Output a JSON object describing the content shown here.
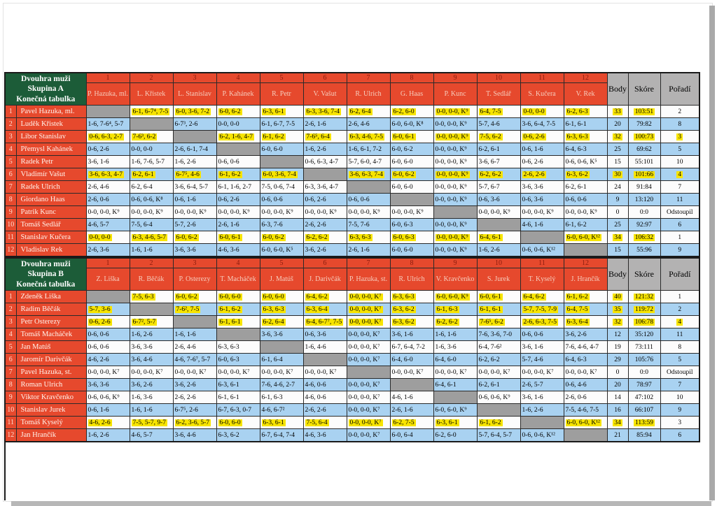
{
  "colors": {
    "header_red": "#e6492d",
    "header_green": "#1c5c38",
    "zebra_blue": "#a9d2f1",
    "self_gray": "#9e9e9e",
    "highlight_yellow": "#f7e400",
    "result_header_gray": "#b3b2b2"
  },
  "tables": [
    {
      "title_lines": [
        "Dvouhra muži",
        "Skupina A",
        "Konečná tabulka"
      ],
      "col_numbers": [
        "1",
        "2",
        "3",
        "4",
        "5",
        "6",
        "7",
        "8",
        "9",
        "10",
        "11",
        "12"
      ],
      "col_players": [
        "P. Hazuka, ml.",
        "L. Křistek",
        "L. Stanislav",
        "P. Kahánek",
        "R. Petr",
        "V. Vašut",
        "R. Ulrich",
        "G. Haas",
        "P. Kunc",
        "T. Sedlář",
        "S. Kučera",
        "V. Rek"
      ],
      "result_headers": [
        "Body",
        "Skóre",
        "Pořadí"
      ],
      "rows": [
        {
          "num": "1",
          "name": "Pavel Hazuka, ml.",
          "highlight": true,
          "hl_poradi": false,
          "cells": [
            "",
            "6-1, 6-7⁴, 7-5",
            "6-0, 3-6, 7-2",
            "6-0, 6-2",
            "6-3, 6-1",
            "6-3, 3-6, 7-4",
            "6-2, 6-4",
            "6-2, 6-0",
            "0-0, 0-0, K⁹",
            "6-4, 7-5",
            "0-0, 0-0",
            "6-2, 6-3"
          ],
          "body": "33",
          "skore": "103:51",
          "poradi": "2"
        },
        {
          "num": "2",
          "name": "Luděk Křistek",
          "highlight": false,
          "hl_poradi": false,
          "cells": [
            "1-6, 7-6⁴, 5-7",
            "",
            "6-7³, 2-6",
            "0-0, 0-0",
            "6-1, 6-7, 7-5",
            "2-6, 1-6",
            "2-6, 4-6",
            "6-0, 6-0, K⁸",
            "0-0, 0-0, K⁹",
            "5-7, 4-6",
            "3-6, 6-4, 7-5",
            "6-1, 6-1"
          ],
          "body": "20",
          "skore": "79:82",
          "poradi": "8"
        },
        {
          "num": "3",
          "name": "Libor Stanislav",
          "highlight": true,
          "hl_poradi": true,
          "cells": [
            "0-6, 6-3, 2-7",
            "7-6³, 6-2",
            "",
            "6-2, 1-6, 4-7",
            "6-1, 6-2",
            "7-6⁵, 6-4",
            "6-3, 4-6, 7-5",
            "6-0, 6-1",
            "0-0, 0-0, K⁹",
            "7-5, 6-2",
            "0-6, 2-6",
            "6-3, 6-3"
          ],
          "body": "32",
          "skore": "100:73",
          "poradi": "3"
        },
        {
          "num": "4",
          "name": "Přemysl Kahánek",
          "highlight": false,
          "hl_poradi": false,
          "cells": [
            "0-6, 2-6",
            "0-0, 0-0",
            "2-6, 6-1, 7-4",
            "",
            "6-0, 6-0",
            "1-6, 2-6",
            "1-6, 6-1, 7-2",
            "6-0, 6-2",
            "0-0, 0-0, K⁹",
            "6-2, 6-1",
            "0-6, 1-6",
            "6-4, 6-3"
          ],
          "body": "25",
          "skore": "69:62",
          "poradi": "5"
        },
        {
          "num": "5",
          "name": "Radek Petr",
          "highlight": false,
          "hl_poradi": false,
          "cells": [
            "3-6, 1-6",
            "1-6, 7-6, 5-7",
            "1-6, 2-6",
            "0-6, 0-6",
            "",
            "0-6, 6-3, 4-7",
            "5-7, 6-0, 4-7",
            "6-0, 6-0",
            "0-0, 0-0, K⁹",
            "3-6, 6-7",
            "0-6, 2-6",
            "0-6, 0-6, K⁵"
          ],
          "body": "15",
          "skore": "55:101",
          "poradi": "10"
        },
        {
          "num": "6",
          "name": "Vladimír Vašut",
          "highlight": true,
          "hl_poradi": true,
          "cells": [
            "3-6, 6-3, 4-7",
            "6-2, 6-1",
            "6-7⁵, 4-6",
            "6-1, 6-2",
            "6-0, 3-6, 7-4",
            "",
            "3-6, 6-3, 7-4",
            "6-0, 6-2",
            "0-0, 0-0, K⁹",
            "6-2, 6-2",
            "2-6, 2-6",
            "6-3, 6-2"
          ],
          "body": "30",
          "skore": "101:66",
          "poradi": "4"
        },
        {
          "num": "7",
          "name": "Radek Ulrich",
          "highlight": false,
          "hl_poradi": false,
          "cells": [
            "2-6, 4-6",
            "6-2, 6-4",
            "3-6, 6-4, 5-7",
            "6-1, 1-6, 2-7",
            "7-5, 0-6, 7-4",
            "6-3, 3-6, 4-7",
            "",
            "6-0, 6-0",
            "0-0, 0-0, K⁹",
            "5-7, 6-7",
            "3-6, 3-6",
            "6-2, 6-1"
          ],
          "body": "24",
          "skore": "91:84",
          "poradi": "7"
        },
        {
          "num": "8",
          "name": "Giordano Haas",
          "highlight": false,
          "hl_poradi": false,
          "cells": [
            "2-6, 0-6",
            "0-6, 0-6, K⁸",
            "0-6, 1-6",
            "0-6, 2-6",
            "0-6, 0-6",
            "0-6, 2-6",
            "0-6, 0-6",
            "",
            "0-0, 0-0, K⁹",
            "0-6, 3-6",
            "0-6, 3-6",
            "0-6, 0-6"
          ],
          "body": "9",
          "skore": "13:120",
          "poradi": "11"
        },
        {
          "num": "9",
          "name": "Patrik Kunc",
          "highlight": false,
          "hl_poradi": false,
          "cells": [
            "0-0, 0-0, K⁹",
            "0-0, 0-0, K⁹",
            "0-0, 0-0, K⁹",
            "0-0, 0-0, K⁹",
            "0-0, 0-0, K⁹",
            "0-0, 0-0, K⁹",
            "0-0, 0-0, K⁹",
            "0-0, 0-0, K⁹",
            "",
            "0-0, 0-0, K⁹",
            "0-0, 0-0, K⁹",
            "0-0, 0-0, K⁹"
          ],
          "body": "0",
          "skore": "0:0",
          "poradi": "Odstoupil"
        },
        {
          "num": "10",
          "name": "Tomáš Sedlář",
          "highlight": false,
          "hl_poradi": false,
          "cells": [
            "4-6, 5-7",
            "7-5, 6-4",
            "5-7, 2-6",
            "2-6, 1-6",
            "6-3, 7-6",
            "2-6, 2-6",
            "7-5, 7-6",
            "6-0, 6-3",
            "0-0, 0-0, K⁹",
            "",
            "4-6, 1-6",
            "6-1, 6-2"
          ],
          "body": "25",
          "skore": "92:97",
          "poradi": "6"
        },
        {
          "num": "11",
          "name": "Stanislav Kučera",
          "highlight": true,
          "hl_poradi": false,
          "cells": [
            "0-0, 0-0",
            "6-3, 4-6, 5-7",
            "6-0, 6-2",
            "6-0, 6-1",
            "6-0, 6-2",
            "6-2, 6-2",
            "6-3, 6-3",
            "6-0, 6-3",
            "0-0, 0-0, K⁹",
            "6-4, 6-1",
            "",
            "6-0, 6-0, K¹²"
          ],
          "body": "34",
          "skore": "106:32",
          "poradi": "1"
        },
        {
          "num": "12",
          "name": "Vladislav Rek",
          "highlight": false,
          "hl_poradi": false,
          "cells": [
            "2-6, 3-6",
            "1-6, 1-6",
            "3-6, 3-6",
            "4-6, 3-6",
            "6-0, 6-0, K⁵",
            "3-6, 2-6",
            "2-6, 1-6",
            "6-0, 6-0",
            "0-0, 0-0, K⁹",
            "1-6, 2-6",
            "0-6, 0-6, K¹²",
            ""
          ],
          "body": "15",
          "skore": "55:96",
          "poradi": "9"
        }
      ]
    },
    {
      "title_lines": [
        "Dvouhra muži",
        "Skupina B",
        "Konečná tabulka"
      ],
      "col_numbers": [
        "1",
        "2",
        "3",
        "4",
        "5",
        "6",
        "7",
        "8",
        "9",
        "10",
        "11",
        "12"
      ],
      "col_players": [
        "Z. Liška",
        "R. Běčák",
        "P. Osterezy",
        "T. Macháček",
        "J. Matúš",
        "J. Darivčák",
        "P. Hazuka, st.",
        "R. Ulrich",
        "V. Kravčenko",
        "S. Jurek",
        "T. Kyselý",
        "J. Hrančík"
      ],
      "result_headers": [
        "Body",
        "Skóre",
        "Pořadí"
      ],
      "rows": [
        {
          "num": "1",
          "name": "Zdeněk Liška",
          "highlight": true,
          "hl_poradi": false,
          "cells": [
            "",
            "7-5, 6-3",
            "6-0, 6-2",
            "6-0, 6-0",
            "6-0, 6-0",
            "6-4, 6-2",
            "0-0, 0-0, K⁷",
            "6-3, 6-3",
            "6-0, 6-0, K⁹",
            "6-0, 6-1",
            "6-4, 6-2",
            "6-1, 6-2"
          ],
          "body": "40",
          "skore": "121:32",
          "poradi": "1"
        },
        {
          "num": "2",
          "name": "Radim Běčák",
          "highlight": true,
          "hl_poradi": false,
          "cells": [
            "5-7, 3-6",
            "",
            "7-6², 7-5",
            "6-1, 6-2",
            "6-3, 6-3",
            "6-3, 6-4",
            "0-0, 0-0, K⁷",
            "6-3, 6-2",
            "6-1, 6-3",
            "6-1, 6-1",
            "5-7, 7-5, 7-9",
            "6-4, 7-5"
          ],
          "body": "35",
          "skore": "119:72",
          "poradi": "2"
        },
        {
          "num": "3",
          "name": "Petr Osterezy",
          "highlight": true,
          "hl_poradi": true,
          "cells": [
            "0-6, 2-6",
            "6-7², 5-7",
            "",
            "6-1, 6-1",
            "6-2, 6-4",
            "6-4, 6-7⁷, 7-5",
            "0-0, 0-0, K⁷",
            "6-3, 6-2",
            "6-2, 6-2",
            "7-6⁵, 6-2",
            "2-6, 6-3, 7-5",
            "6-3, 6-4"
          ],
          "body": "32",
          "skore": "106:78",
          "poradi": "4"
        },
        {
          "num": "4",
          "name": "Tomáš Macháček",
          "highlight": false,
          "hl_poradi": false,
          "cells": [
            "0-6, 0-6",
            "1-6, 2-6",
            "1-6, 1-6",
            "",
            "3-6, 3-6",
            "0-6, 3-6",
            "0-0, 0-0, K⁷",
            "3-6, 1-6",
            "1-6, 1-6",
            "7-6, 3-6, 7-0",
            "0-6, 0-6",
            "3-6, 2-6"
          ],
          "body": "12",
          "skore": "35:120",
          "poradi": "11"
        },
        {
          "num": "5",
          "name": "Jan Matúš",
          "highlight": false,
          "hl_poradi": false,
          "cells": [
            "0-6, 0-6",
            "3-6, 3-6",
            "2-6, 4-6",
            "6-3, 6-3",
            "",
            "1-6, 4-6",
            "0-0, 0-0, K⁷",
            "6-7, 6-4, 7-2",
            "1-6, 3-6",
            "6-4, 7-6²",
            "3-6, 1-6",
            "7-6, 4-6, 4-7"
          ],
          "body": "19",
          "skore": "73:111",
          "poradi": "8"
        },
        {
          "num": "6",
          "name": "Jaromír Darivčák",
          "highlight": false,
          "hl_poradi": false,
          "cells": [
            "4-6, 2-6",
            "3-6, 4-6",
            "4-6, 7-6⁷, 5-7",
            "6-0, 6-3",
            "6-1, 6-4",
            "",
            "0-0, 0-0, K⁷",
            "6-4, 6-0",
            "6-4, 6-0",
            "6-2, 6-2",
            "5-7, 4-6",
            "6-4, 6-3"
          ],
          "body": "29",
          "skore": "105:76",
          "poradi": "5"
        },
        {
          "num": "7",
          "name": "Pavel Hazuka, st.",
          "highlight": false,
          "hl_poradi": false,
          "cells": [
            "0-0, 0-0, K⁷",
            "0-0, 0-0, K⁷",
            "0-0, 0-0, K⁷",
            "0-0, 0-0, K⁷",
            "0-0, 0-0, K⁷",
            "0-0, 0-0, K⁷",
            "",
            "0-0, 0-0, K⁷",
            "0-0, 0-0, K⁷",
            "0-0, 0-0, K⁷",
            "0-0, 0-0, K⁷",
            "0-0, 0-0, K⁷"
          ],
          "body": "0",
          "skore": "0:0",
          "poradi": "Odstoupil"
        },
        {
          "num": "8",
          "name": "Roman Ulrich",
          "highlight": false,
          "hl_poradi": false,
          "cells": [
            "3-6, 3-6",
            "3-6, 2-6",
            "3-6, 2-6",
            "6-3, 6-1",
            "7-6, 4-6, 2-7",
            "4-6, 0-6",
            "0-0, 0-0, K⁷",
            "",
            "6-4, 6-1",
            "6-2, 6-1",
            "2-6, 5-7",
            "0-6, 4-6"
          ],
          "body": "20",
          "skore": "78:97",
          "poradi": "7"
        },
        {
          "num": "9",
          "name": "Viktor Kravčenko",
          "highlight": false,
          "hl_poradi": false,
          "cells": [
            "0-6, 0-6, K⁹",
            "1-6, 3-6",
            "2-6, 2-6",
            "6-1, 6-1",
            "6-1, 6-3",
            "4-6, 0-6",
            "0-0, 0-0, K⁷",
            "4-6, 1-6",
            "",
            "0-6, 0-6, K⁹",
            "3-6, 1-6",
            "2-6, 0-6"
          ],
          "body": "14",
          "skore": "47:102",
          "poradi": "10"
        },
        {
          "num": "10",
          "name": "Stanislav Jurek",
          "highlight": false,
          "hl_poradi": false,
          "cells": [
            "0-6, 1-6",
            "1-6, 1-6",
            "6-7⁵, 2-6",
            "6-7, 6-3, 0-7",
            "4-6, 6-7²",
            "2-6, 2-6",
            "0-0, 0-0, K⁷",
            "2-6, 1-6",
            "6-0, 6-0, K⁹",
            "",
            "1-6, 2-6",
            "7-5, 4-6, 7-5"
          ],
          "body": "16",
          "skore": "66:107",
          "poradi": "9"
        },
        {
          "num": "11",
          "name": "Tomáš Kyselý",
          "highlight": true,
          "hl_poradi": false,
          "cells": [
            "4-6, 2-6",
            "7-5, 5-7, 9-7",
            "6-2, 3-6, 5-7",
            "6-0, 6-0",
            "6-3, 6-1",
            "7-5, 6-4",
            "0-0, 0-0, K⁷",
            "6-2, 7-5",
            "6-3, 6-1",
            "6-1, 6-2",
            "",
            "6-0, 6-0, K¹²"
          ],
          "body": "34",
          "skore": "113:59",
          "poradi": "3"
        },
        {
          "num": "12",
          "name": "Jan Hrančík",
          "highlight": false,
          "hl_poradi": false,
          "cells": [
            "1-6, 2-6",
            "4-6, 5-7",
            "3-6, 4-6",
            "6-3, 6-2",
            "6-7, 6-4, 7-4",
            "4-6, 3-6",
            "0-0, 0-0, K⁷",
            "6-0, 6-4",
            "6-2, 6-0",
            "5-7, 6-4, 5-7",
            "0-6, 0-6, K¹²",
            ""
          ],
          "body": "21",
          "skore": "85:94",
          "poradi": "6"
        }
      ]
    }
  ]
}
